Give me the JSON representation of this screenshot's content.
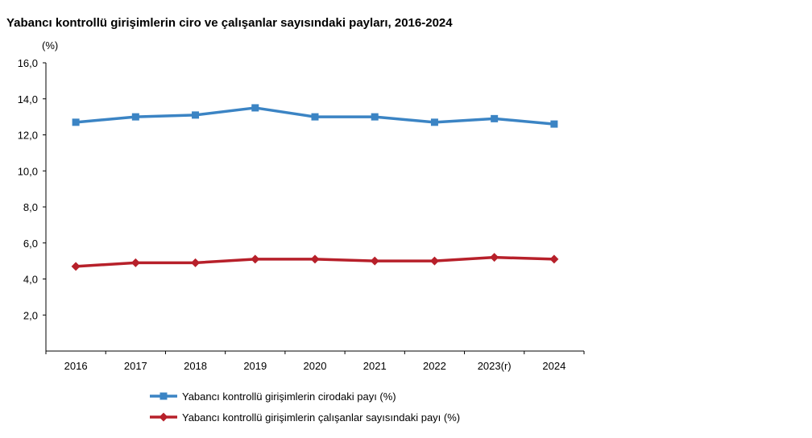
{
  "chart_data": {
    "type": "line",
    "title": "Yabancı kontrollü girişimlerin ciro ve çalışanlar sayısındaki payları, 2016-2024",
    "ylabel": "(%)",
    "xlabel": "",
    "categories": [
      "2016",
      "2017",
      "2018",
      "2019",
      "2020",
      "2021",
      "2022",
      "2023(r)",
      "2024"
    ],
    "ylim": [
      0,
      16
    ],
    "yticks": [
      "16,0",
      "14,0",
      "12,0",
      "10,0",
      "8,0",
      "6,0",
      "4,0",
      "2,0"
    ],
    "ytick_values": [
      16,
      14,
      12,
      10,
      8,
      6,
      4,
      2
    ],
    "grid": false,
    "legend_position": "bottom",
    "series": [
      {
        "name": "Yabancı kontrollü girişimlerin cirodaki payı (%)",
        "values": [
          12.7,
          13.0,
          13.1,
          13.5,
          13.0,
          13.0,
          12.7,
          12.9,
          12.6
        ],
        "color": "#3b84c4",
        "marker": "square"
      },
      {
        "name": "Yabancı kontrollü girişimlerin çalışanlar sayısındaki payı (%)",
        "values": [
          4.7,
          4.9,
          4.9,
          5.1,
          5.1,
          5.0,
          5.0,
          5.2,
          5.1
        ],
        "color": "#b7202a",
        "marker": "diamond"
      }
    ]
  }
}
